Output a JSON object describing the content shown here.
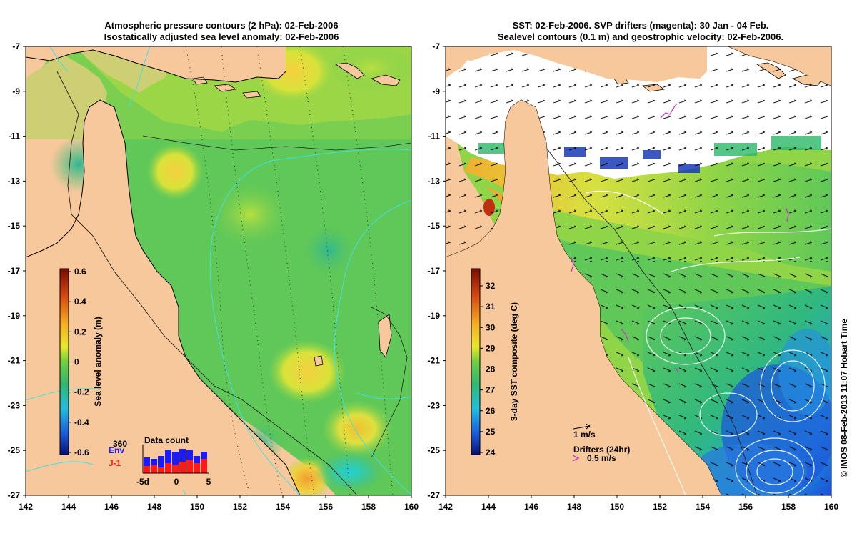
{
  "left_panel": {
    "title_line1": "Atmospheric pressure contours (2 hPa): 02-Feb-2006",
    "title_line2": "Isostatically adjusted sea level anomaly: 02-Feb-2006",
    "lat_ticks": [
      "-7",
      "-9",
      "-11",
      "-13",
      "-15",
      "-17",
      "-19",
      "-21",
      "-23",
      "-25",
      "-27"
    ],
    "lon_ticks": [
      "142",
      "144",
      "146",
      "148",
      "150",
      "152",
      "154",
      "156",
      "158",
      "160"
    ],
    "colorbar": {
      "label": "Sea level anomaly (m)",
      "ticks": [
        "0.6",
        "0.4",
        "0.2",
        "0",
        "-0.2",
        "-0.4",
        "-0.6"
      ]
    },
    "data_count": {
      "title": "Data count",
      "max_label": "360",
      "env_label": "Env",
      "j1_label": "J-1",
      "x_ticks": [
        "-5d",
        "0",
        "5"
      ],
      "env_color": "#1a1aff",
      "j1_color": "#ff1a1a",
      "env_values": [
        0.55,
        0.5,
        0.6,
        0.8,
        0.75,
        0.85,
        0.8,
        0.6,
        0.75
      ],
      "j1_values": [
        0.25,
        0.3,
        0.2,
        0.35,
        0.3,
        0.4,
        0.45,
        0.35,
        0.5
      ]
    }
  },
  "right_panel": {
    "title_line1": "SST: 02-Feb-2006. SVP drifters (magenta): 30 Jan - 04 Feb.",
    "title_line2": "Sealevel contours (0.1 m) and geostrophic velocity: 02-Feb-2006.",
    "lat_ticks": [
      "-7",
      "-9",
      "-11",
      "-13",
      "-15",
      "-17",
      "-19",
      "-21",
      "-23",
      "-25",
      "-27"
    ],
    "lon_ticks": [
      "142",
      "144",
      "146",
      "148",
      "150",
      "152",
      "154",
      "156",
      "158",
      "160"
    ],
    "colorbar": {
      "label": "3-day SST composite (deg C)",
      "ticks": [
        "32",
        "31",
        "30",
        "29",
        "28",
        "27",
        "26",
        "25",
        "24"
      ]
    },
    "scale_label": "1 m/s",
    "drifters_label": "Drifters (24hr)",
    "drifter_speed_label": "0.5 m/s",
    "drifter_color": "#cc33cc"
  },
  "credit": "© IMOS 08-Feb-2013 11:07 Hobart Time",
  "colors": {
    "land": "#f7c89b",
    "ocean_green": "#5cc85a",
    "contour_cyan": "#40e0e0"
  }
}
